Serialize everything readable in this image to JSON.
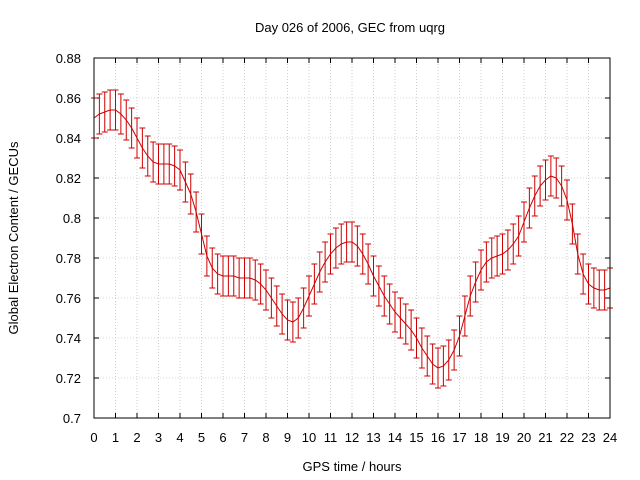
{
  "chart_data": {
    "type": "line",
    "title": "Day 026 of 2006, GEC from uqrg",
    "xlabel": "GPS time / hours",
    "ylabel": "Global Electron Content / GECUs",
    "xlim": [
      0,
      24
    ],
    "ylim": [
      0.7,
      0.88
    ],
    "grid": true,
    "x_ticks": [
      "0",
      "1",
      "2",
      "3",
      "4",
      "5",
      "6",
      "7",
      "8",
      "9",
      "10",
      "11",
      "12",
      "13",
      "14",
      "15",
      "16",
      "17",
      "18",
      "19",
      "20",
      "21",
      "22",
      "23",
      "24"
    ],
    "y_ticks": [
      "0.7",
      "0.72",
      "0.74",
      "0.76",
      "0.78",
      "0.8",
      "0.82",
      "0.84",
      "0.86",
      "0.88"
    ],
    "line_color": "#cc0000",
    "error": 0.01,
    "series": [
      {
        "name": "GEC",
        "x": [
          0,
          0.25,
          0.5,
          0.75,
          1,
          1.25,
          1.5,
          1.75,
          2,
          2.25,
          2.5,
          2.75,
          3,
          3.25,
          3.5,
          3.75,
          4,
          4.25,
          4.5,
          4.75,
          5,
          5.25,
          5.5,
          5.75,
          6,
          6.25,
          6.5,
          6.75,
          7,
          7.25,
          7.5,
          7.75,
          8,
          8.25,
          8.5,
          8.75,
          9,
          9.25,
          9.5,
          9.75,
          10,
          10.25,
          10.5,
          10.75,
          11,
          11.25,
          11.5,
          11.75,
          12,
          12.25,
          12.5,
          12.75,
          13,
          13.25,
          13.5,
          13.75,
          14,
          14.25,
          14.5,
          14.75,
          15,
          15.25,
          15.5,
          15.75,
          16,
          16.25,
          16.5,
          16.75,
          17,
          17.25,
          17.5,
          17.75,
          18,
          18.25,
          18.5,
          18.75,
          19,
          19.25,
          19.5,
          19.75,
          20,
          20.25,
          20.5,
          20.75,
          21,
          21.25,
          21.5,
          21.75,
          22,
          22.25,
          22.5,
          22.75,
          23,
          23.25,
          23.5,
          23.75,
          24
        ],
        "y": [
          0.85,
          0.852,
          0.853,
          0.854,
          0.854,
          0.852,
          0.849,
          0.845,
          0.84,
          0.835,
          0.831,
          0.828,
          0.827,
          0.827,
          0.827,
          0.826,
          0.824,
          0.818,
          0.812,
          0.803,
          0.792,
          0.781,
          0.775,
          0.772,
          0.771,
          0.771,
          0.771,
          0.77,
          0.77,
          0.77,
          0.769,
          0.767,
          0.764,
          0.76,
          0.756,
          0.752,
          0.749,
          0.748,
          0.75,
          0.755,
          0.761,
          0.767,
          0.773,
          0.778,
          0.782,
          0.785,
          0.787,
          0.788,
          0.788,
          0.786,
          0.782,
          0.777,
          0.771,
          0.766,
          0.761,
          0.757,
          0.753,
          0.75,
          0.747,
          0.744,
          0.74,
          0.735,
          0.731,
          0.727,
          0.725,
          0.726,
          0.729,
          0.734,
          0.741,
          0.751,
          0.761,
          0.768,
          0.774,
          0.778,
          0.78,
          0.781,
          0.782,
          0.784,
          0.787,
          0.791,
          0.798,
          0.805,
          0.811,
          0.816,
          0.819,
          0.821,
          0.82,
          0.816,
          0.809,
          0.797,
          0.782,
          0.772,
          0.767,
          0.765,
          0.764,
          0.764,
          0.765
        ]
      }
    ]
  }
}
